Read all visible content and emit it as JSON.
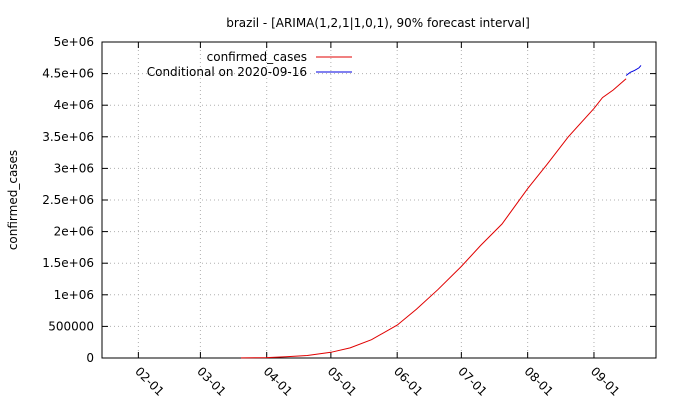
{
  "chart_data": {
    "type": "line",
    "title": "brazil -  [ARIMA(1,2,1|1,0,1), 90% forecast interval]",
    "xlabel": "",
    "ylabel": "confirmed_cases",
    "xlim": [
      "2020-01-15",
      "2020-09-30"
    ],
    "ylim": [
      0,
      5000000
    ],
    "grid": true,
    "legend_position": "top-right",
    "x_tick_labels": [
      "02-01",
      "03-01",
      "04-01",
      "05-01",
      "06-01",
      "07-01",
      "08-01",
      "09-01"
    ],
    "x_tick_dates": [
      "2020-02-01",
      "2020-03-01",
      "2020-04-01",
      "2020-05-01",
      "2020-06-01",
      "2020-07-01",
      "2020-08-01",
      "2020-09-01"
    ],
    "y_tick_labels": [
      "0",
      "500000",
      "1e+06",
      "1.5e+06",
      "2e+06",
      "2.5e+06",
      "3e+06",
      "3.5e+06",
      "4e+06",
      "4.5e+06",
      "5e+06"
    ],
    "y_tick_values": [
      0,
      500000,
      1000000,
      1500000,
      2000000,
      2500000,
      3000000,
      3500000,
      4000000,
      4500000,
      5000000
    ],
    "series": [
      {
        "name": "confirmed_cases",
        "color": "#e00000",
        "points": [
          [
            "2020-03-20",
            900
          ],
          [
            "2020-04-01",
            6800
          ],
          [
            "2020-04-10",
            19000
          ],
          [
            "2020-04-20",
            40000
          ],
          [
            "2020-05-01",
            90000
          ],
          [
            "2020-05-10",
            160000
          ],
          [
            "2020-05-20",
            290000
          ],
          [
            "2020-06-01",
            520000
          ],
          [
            "2020-06-10",
            770000
          ],
          [
            "2020-06-20",
            1080000
          ],
          [
            "2020-07-01",
            1450000
          ],
          [
            "2020-07-10",
            1780000
          ],
          [
            "2020-07-20",
            2120000
          ],
          [
            "2020-08-01",
            2680000
          ],
          [
            "2020-08-10",
            3060000
          ],
          [
            "2020-08-20",
            3500000
          ],
          [
            "2020-09-01",
            3950000
          ],
          [
            "2020-09-05",
            4120000
          ],
          [
            "2020-09-10",
            4240000
          ],
          [
            "2020-09-16",
            4420000
          ]
        ]
      },
      {
        "name": "Conditional on 2020-09-16",
        "color": "#0000e0",
        "points": [
          [
            "2020-09-16",
            4470000
          ],
          [
            "2020-09-18",
            4520000
          ],
          [
            "2020-09-20",
            4550000
          ],
          [
            "2020-09-22",
            4590000
          ],
          [
            "2020-09-23",
            4630000
          ]
        ]
      }
    ]
  }
}
